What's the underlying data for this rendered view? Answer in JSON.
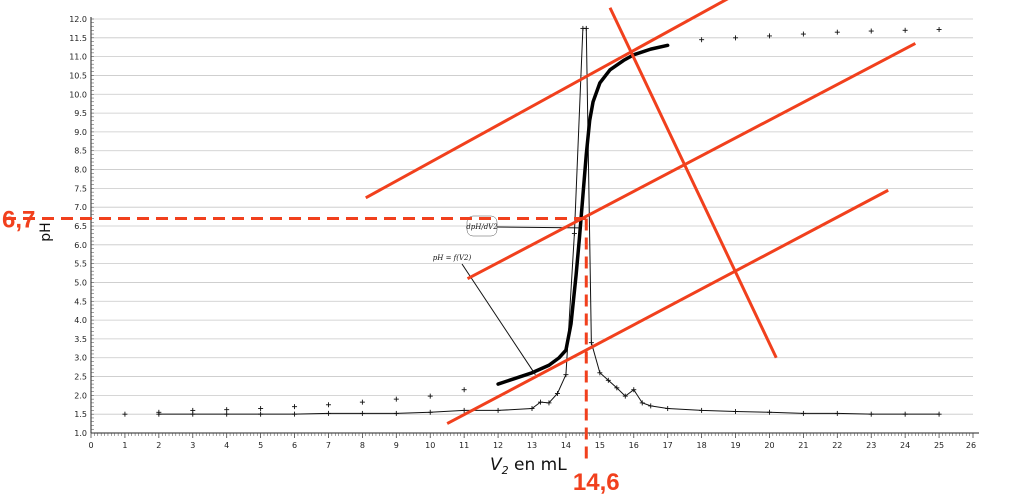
{
  "chart_data": {
    "type": "line",
    "xlabel_main": "V",
    "xlabel_sub": "2",
    "xlabel_rest": " en mL",
    "ylabel": "pH",
    "xlim": [
      0,
      26
    ],
    "ylim": [
      1.0,
      12.0
    ],
    "x_ticks": [
      0,
      1,
      2,
      3,
      4,
      5,
      6,
      7,
      8,
      9,
      10,
      11,
      12,
      13,
      14,
      15,
      16,
      17,
      18,
      19,
      20,
      21,
      22,
      23,
      24,
      25
    ],
    "x_tick_labels": [
      "0",
      "1",
      "2",
      "3",
      "4",
      "5",
      "6",
      "7",
      "8",
      "9",
      "10",
      "11",
      "12",
      "13",
      "14",
      "15",
      "16",
      "17",
      "18",
      "19",
      "20",
      "21",
      "22",
      "23",
      "24",
      "25"
    ],
    "x_tick_26": "26",
    "y_ticks": [
      1.0,
      1.5,
      2.0,
      2.5,
      3.0,
      3.5,
      4.0,
      4.5,
      5.0,
      5.5,
      6.0,
      6.5,
      7.0,
      7.5,
      8.0,
      8.5,
      9.0,
      9.5,
      10.0,
      10.5,
      11.0,
      11.5,
      12.0
    ],
    "y_tick_labels": [
      "1.0",
      "1.5",
      "2.0",
      "2.5",
      "3.0",
      "3.5",
      "4.0",
      "4.5",
      "5.0",
      "5.5",
      "6.0",
      "6.5",
      "7.0",
      "7.5",
      "8.0",
      "8.5",
      "9.0",
      "9.5",
      "10.0",
      "10.5",
      "11.0",
      "11.5",
      "12.0"
    ],
    "grid_y": true,
    "series": [
      {
        "style": "markers",
        "x": [
          1,
          2,
          3,
          4,
          5,
          6,
          7,
          8,
          9,
          10,
          11,
          18,
          19,
          20,
          21,
          22,
          23,
          24,
          25
        ],
        "y": [
          1.5,
          1.55,
          1.6,
          1.62,
          1.65,
          1.7,
          1.75,
          1.82,
          1.9,
          1.98,
          2.15,
          11.45,
          11.5,
          11.55,
          11.6,
          11.65,
          11.68,
          11.7,
          11.72
        ]
      },
      {
        "style": "line-markers",
        "x": [
          2,
          3,
          4,
          5,
          6,
          7,
          8,
          9,
          10,
          11,
          12,
          13,
          13.25,
          13.5,
          13.75,
          14,
          14.25,
          14.5,
          14.6,
          14.75,
          15,
          15.25,
          15.5,
          15.75,
          16,
          16.25,
          16.5,
          17,
          18,
          19,
          20,
          21,
          22,
          23,
          24,
          25
        ],
        "y": [
          1.5,
          1.5,
          1.5,
          1.5,
          1.5,
          1.52,
          1.52,
          1.52,
          1.55,
          1.6,
          1.6,
          1.65,
          1.82,
          1.8,
          2.05,
          2.55,
          6.3,
          11.75,
          11.75,
          3.4,
          2.6,
          2.4,
          2.2,
          1.98,
          2.15,
          1.8,
          1.72,
          1.65,
          1.6,
          1.57,
          1.55,
          1.52,
          1.52,
          1.5,
          1.5,
          1.5
        ]
      },
      {
        "style": "bold-curve",
        "x": [
          12,
          12.5,
          13,
          13.5,
          13.8,
          14,
          14.15,
          14.3,
          14.4,
          14.5,
          14.6,
          14.7,
          14.8,
          15,
          15.3,
          15.7,
          16,
          16.5,
          17
        ],
        "y": [
          2.3,
          2.45,
          2.6,
          2.8,
          3.0,
          3.2,
          3.9,
          5.2,
          6.2,
          7.3,
          8.4,
          9.3,
          9.8,
          10.3,
          10.65,
          10.9,
          11.05,
          11.2,
          11.3
        ]
      }
    ],
    "annotations": {
      "derivative_label": "dpH/dV2",
      "curve_label": "pH = f(V2)",
      "equivalence_volume": 14.6,
      "equivalence_ph": 6.7,
      "eq_x_label": "14,6",
      "eq_y_label": "6,7",
      "tangent_color": "#f1401d"
    },
    "red_lines": [
      {
        "name": "upper-tangent",
        "x1": 8.1,
        "y1": 7.25,
        "x2": 19.5,
        "y2": 12.9
      },
      {
        "name": "middle-parallel",
        "x1": 11.1,
        "y1": 5.1,
        "x2": 24.3,
        "y2": 11.35
      },
      {
        "name": "lower-tangent",
        "x1": 10.5,
        "y1": 1.25,
        "x2": 23.5,
        "y2": 7.45
      },
      {
        "name": "perpendicular",
        "x1": 15.3,
        "y1": 12.3,
        "x2": 20.2,
        "y2": 3.0
      }
    ]
  }
}
